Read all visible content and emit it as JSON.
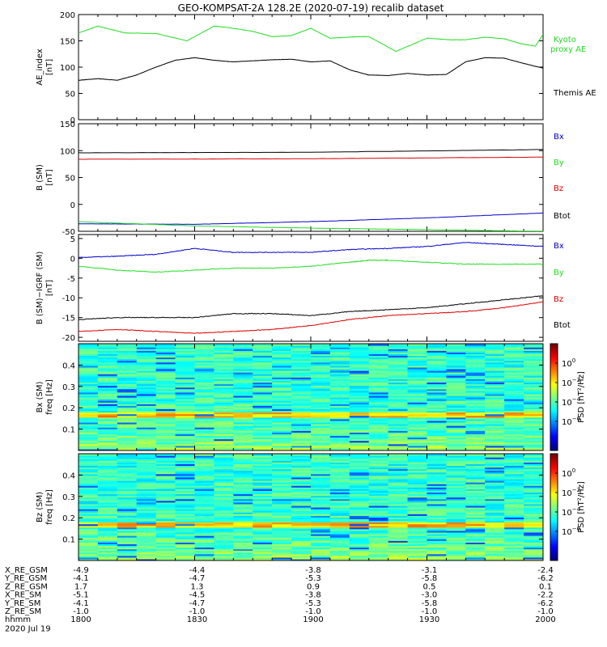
{
  "title": "GEO-KOMPSAT-2A 128.2E (2020-07-19) recalib dataset",
  "colors": {
    "black": "#000000",
    "green": "#22dd22",
    "blue": "#0000cc",
    "red": "#dd0000"
  },
  "chart_data": [
    {
      "type": "line",
      "id": "ae",
      "ylabel": "AE_index",
      "yunit": "[nT]",
      "ylim": [
        0,
        200
      ],
      "yticks": [
        "0",
        "50",
        "100",
        "150",
        "200"
      ],
      "ytick_values": [
        0,
        50,
        100,
        150,
        200
      ],
      "x_minutes": [
        0,
        120
      ],
      "series": [
        {
          "name": "Kyoto proxy AE",
          "color": "#22dd22",
          "x": [
            0,
            5,
            12,
            20,
            28,
            35,
            38,
            45,
            50,
            55,
            60,
            65,
            70,
            72,
            75,
            82,
            90,
            96,
            100,
            105,
            110,
            114,
            118,
            120
          ],
          "y": [
            165,
            178,
            165,
            164,
            150,
            178,
            176,
            168,
            158,
            160,
            174,
            155,
            157,
            158,
            158,
            130,
            155,
            152,
            152,
            157,
            154,
            145,
            140,
            162
          ]
        },
        {
          "name": "Themis AE",
          "color": "#000000",
          "x": [
            0,
            5,
            10,
            15,
            20,
            25,
            30,
            35,
            40,
            45,
            50,
            55,
            60,
            65,
            70,
            75,
            80,
            85,
            90,
            95,
            100,
            105,
            110,
            115,
            120
          ],
          "y": [
            75,
            78,
            75,
            85,
            100,
            113,
            118,
            113,
            110,
            112,
            114,
            115,
            110,
            112,
            95,
            85,
            84,
            88,
            85,
            86,
            110,
            118,
            117,
            107,
            98
          ]
        }
      ],
      "labels": [
        {
          "text": "Kyoto",
          "color": "#22dd22"
        },
        {
          "text": "proxy AE",
          "color": "#22dd22"
        },
        {
          "text": "Themis AE",
          "color": "#000000"
        }
      ]
    },
    {
      "type": "line",
      "id": "bsm",
      "ylabel": "B (SM)",
      "yunit": "[nT]",
      "ylim": [
        -50,
        150
      ],
      "yticks": [
        "-50",
        "0",
        "50",
        "100",
        "150"
      ],
      "ytick_values": [
        -50,
        0,
        50,
        100,
        150
      ],
      "x_minutes": [
        0,
        120
      ],
      "series": [
        {
          "name": "Btot",
          "color": "#000000",
          "x": [
            0,
            60,
            120
          ],
          "y": [
            96,
            97,
            102
          ]
        },
        {
          "name": "Bz",
          "color": "#dd0000",
          "x": [
            0,
            60,
            120
          ],
          "y": [
            84,
            85,
            88
          ]
        },
        {
          "name": "Bx",
          "color": "#0000cc",
          "x": [
            0,
            30,
            60,
            90,
            120
          ],
          "y": [
            -36,
            -37,
            -32,
            -25,
            -16
          ]
        },
        {
          "name": "By",
          "color": "#22dd22",
          "x": [
            0,
            30,
            60,
            90,
            120
          ],
          "y": [
            -32,
            -40,
            -44,
            -47,
            -50
          ]
        }
      ],
      "labels": [
        {
          "text": "Bx",
          "color": "#0000cc"
        },
        {
          "text": "By",
          "color": "#22dd22"
        },
        {
          "text": "Bz",
          "color": "#dd0000"
        },
        {
          "text": "Btot",
          "color": "#000000"
        }
      ]
    },
    {
      "type": "line",
      "id": "digrf",
      "ylabel": "B (SM)−IGRF (SM)",
      "yunit": "[nT]",
      "ylim": [
        -21,
        6
      ],
      "yticks": [
        "-20",
        "-15",
        "-10",
        "-5",
        "0",
        "5"
      ],
      "ytick_values": [
        -20,
        -15,
        -10,
        -5,
        0,
        5
      ],
      "x_minutes": [
        0,
        120
      ],
      "series": [
        {
          "name": "Bx",
          "color": "#0000cc",
          "x": [
            0,
            10,
            20,
            30,
            40,
            50,
            60,
            70,
            80,
            90,
            100,
            110,
            120
          ],
          "y": [
            0.2,
            0.5,
            1.0,
            2.5,
            1.5,
            1.5,
            1.5,
            2.2,
            2.5,
            3.0,
            4.0,
            3.5,
            3.0
          ]
        },
        {
          "name": "By",
          "color": "#22dd22",
          "x": [
            0,
            10,
            20,
            30,
            40,
            50,
            60,
            70,
            75,
            80,
            90,
            100,
            110,
            120
          ],
          "y": [
            -2.0,
            -3.0,
            -3.5,
            -3.0,
            -2.5,
            -2.5,
            -2.0,
            -1.0,
            -0.5,
            -0.5,
            -1.0,
            -1.5,
            -1.5,
            -1.5
          ]
        },
        {
          "name": "Btot",
          "color": "#000000",
          "x": [
            0,
            10,
            20,
            30,
            40,
            50,
            60,
            70,
            80,
            90,
            100,
            110,
            120
          ],
          "y": [
            -15.5,
            -15.0,
            -15.0,
            -15.0,
            -14.0,
            -14.0,
            -14.5,
            -13.5,
            -13.0,
            -12.5,
            -11.5,
            -10.5,
            -9.5
          ]
        },
        {
          "name": "Bz",
          "color": "#dd0000",
          "x": [
            0,
            10,
            20,
            30,
            40,
            50,
            60,
            70,
            80,
            90,
            100,
            110,
            120
          ],
          "y": [
            -18.5,
            -18.0,
            -18.5,
            -19.0,
            -18.5,
            -18.0,
            -17.0,
            -15.5,
            -14.5,
            -14.0,
            -13.5,
            -12.5,
            -11.0
          ]
        }
      ],
      "labels": [
        {
          "text": "Bx",
          "color": "#0000cc"
        },
        {
          "text": "By",
          "color": "#22dd22"
        },
        {
          "text": "Bz",
          "color": "#dd0000"
        },
        {
          "text": "Btot",
          "color": "#000000"
        }
      ]
    },
    {
      "type": "heatmap",
      "id": "bxspec",
      "ylabel": "Bx (SM)",
      "yunit": "freq [Hz]",
      "ylim": [
        0,
        0.5
      ],
      "yticks": [
        "0.1",
        "0.2",
        "0.3",
        "0.4"
      ],
      "ytick_values": [
        0.1,
        0.2,
        0.3,
        0.4
      ],
      "x_minutes": [
        0,
        120
      ],
      "colorbar": {
        "label": "PSD [nT²/Hz]",
        "zlim_log10": [
          -9,
          2
        ],
        "ticks": [
          {
            "base": "10",
            "exp": "0",
            "v": 0
          },
          {
            "base": "10",
            "exp": "−2",
            "v": -2
          },
          {
            "base": "10",
            "exp": "−4",
            "v": -4
          },
          {
            "base": "10",
            "exp": "−6",
            "v": -6
          }
        ]
      }
    },
    {
      "type": "heatmap",
      "id": "bzspec",
      "ylabel": "Bz (SM)",
      "yunit": "freq [Hz]",
      "ylim": [
        0,
        0.5
      ],
      "yticks": [
        "0.1",
        "0.2",
        "0.3",
        "0.4"
      ],
      "ytick_values": [
        0.1,
        0.2,
        0.3,
        0.4
      ],
      "x_minutes": [
        0,
        120
      ],
      "colorbar": {
        "label": "PSD [nT²/Hz]",
        "zlim_log10": [
          -9,
          2
        ],
        "ticks": [
          {
            "base": "10",
            "exp": "0",
            "v": 0
          },
          {
            "base": "10",
            "exp": "−2",
            "v": -2
          },
          {
            "base": "10",
            "exp": "−4",
            "v": -4
          },
          {
            "base": "10",
            "exp": "−6",
            "v": -6
          }
        ]
      }
    }
  ],
  "ephemeris": {
    "rows": [
      {
        "label": "X_RE_GSM",
        "values": [
          "-4.9",
          "-4.4",
          "-3.8",
          "-3.1",
          "-2.4"
        ]
      },
      {
        "label": "Y_RE_GSM",
        "values": [
          "-4.1",
          "-4.7",
          "-5.3",
          "-5.8",
          "-6.2"
        ]
      },
      {
        "label": "Z_RE_GSM",
        "values": [
          "1.7",
          "1.3",
          "0.9",
          "0.5",
          "0.1"
        ]
      },
      {
        "label": "X_RE_SM",
        "values": [
          "-5.1",
          "-4.5",
          "-3.8",
          "-3.0",
          "-2.2"
        ]
      },
      {
        "label": "Y_RE_SM",
        "values": [
          "-4.1",
          "-4.7",
          "-5.3",
          "-5.8",
          "-6.2"
        ]
      },
      {
        "label": "Z_RE_SM",
        "values": [
          "-1.0",
          "-1.0",
          "-1.0",
          "-1.0",
          "-1.0"
        ]
      },
      {
        "label": "hhmm",
        "values": [
          "1800",
          "1830",
          "1900",
          "1930",
          "2000"
        ]
      }
    ],
    "tick_minutes": [
      0,
      30,
      60,
      90,
      120
    ],
    "date": "2020 Jul 19"
  }
}
